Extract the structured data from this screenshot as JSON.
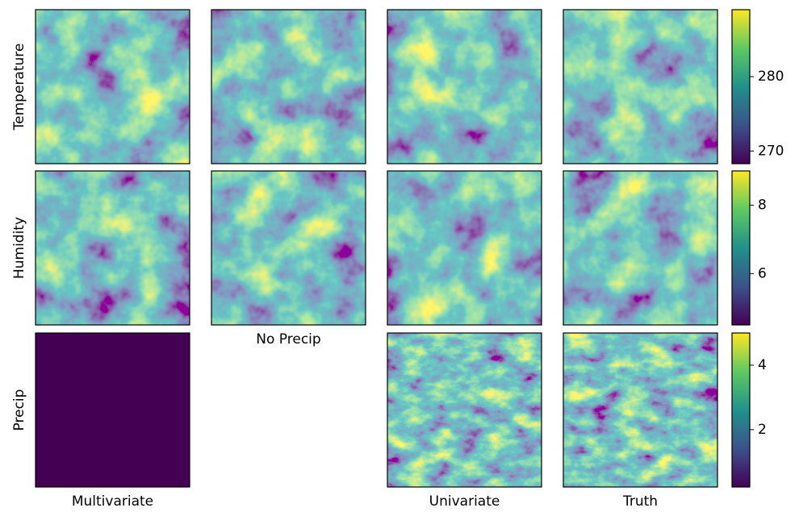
{
  "chart_data": {
    "type": "heatmap-grid",
    "rows": [
      "Temperature",
      "Humidity",
      "Precip"
    ],
    "columns": [
      "Multivariate",
      "No Precip",
      "Univariate",
      "Truth"
    ],
    "empty_panels": [
      {
        "row": 2,
        "column": 1
      }
    ],
    "constant_panels": [
      {
        "row": 2,
        "column": 0,
        "color": "#440154"
      }
    ],
    "colorbars": [
      {
        "ylim": [
          268.3,
          289
        ],
        "yticks": [
          270,
          280
        ]
      },
      {
        "ylim": [
          4.5,
          9.0
        ],
        "yticks": [
          6,
          8
        ]
      },
      {
        "ylim": [
          0.22,
          5.0
        ],
        "yticks": [
          2,
          4
        ]
      }
    ]
  }
}
